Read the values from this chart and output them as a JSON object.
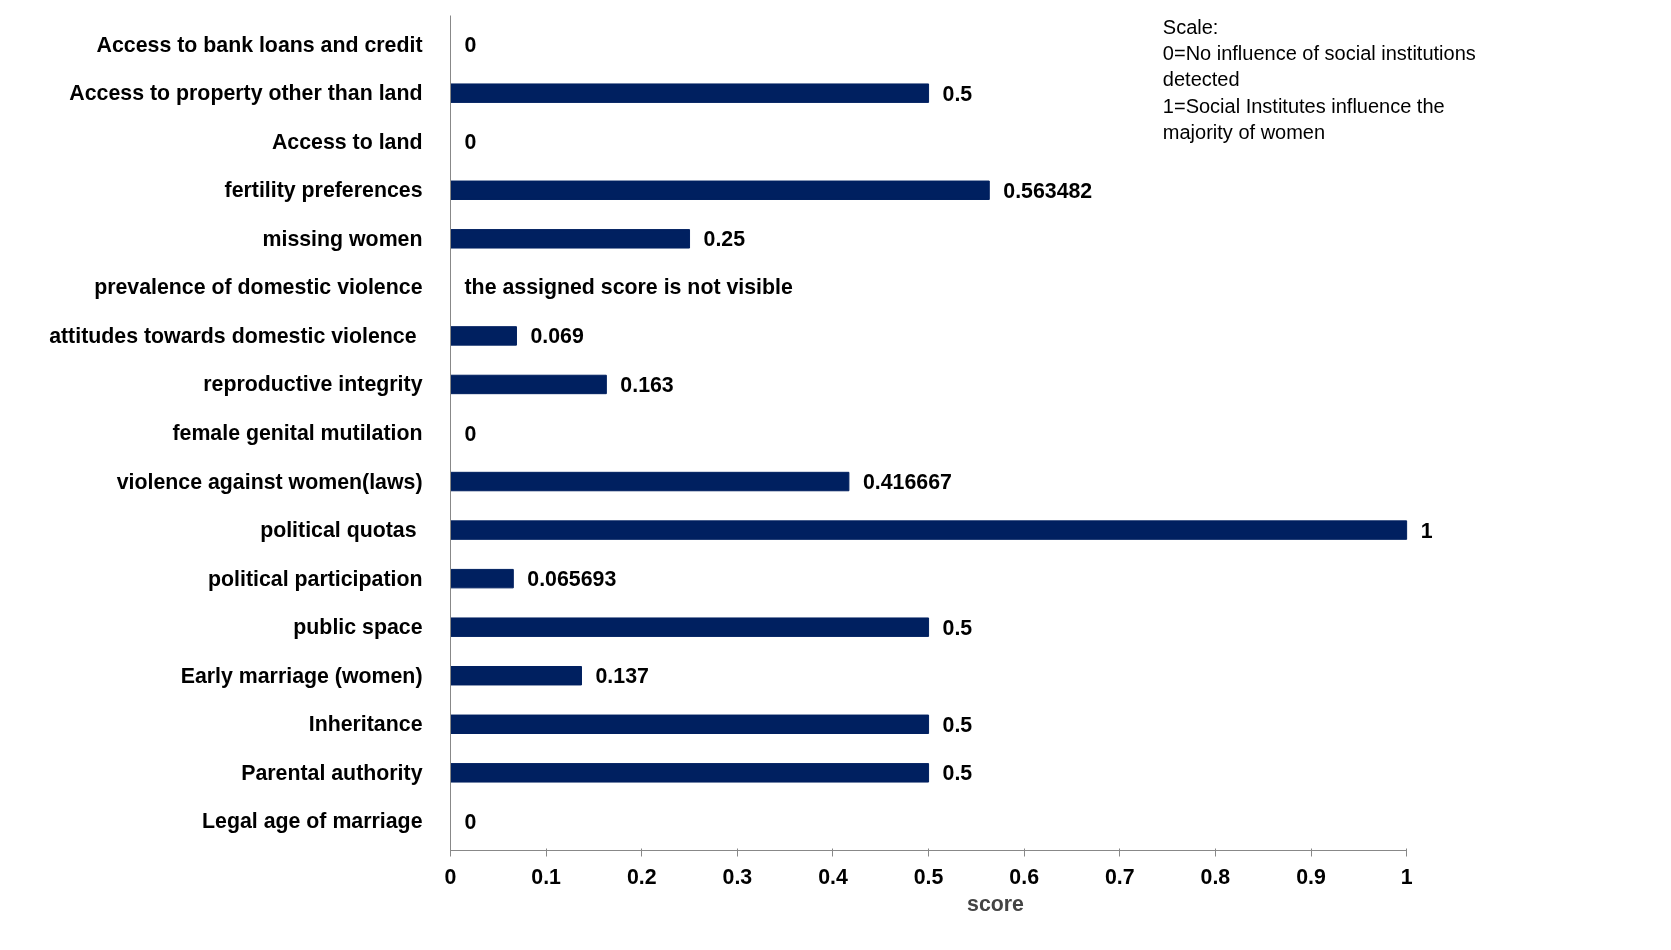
{
  "chart_data": {
    "type": "bar",
    "orientation": "horizontal",
    "xlabel": "score",
    "categories": [
      "Access to bank loans and credit",
      "Access to property other than land",
      "Access to land",
      "fertility preferences",
      "missing women",
      "prevalence of domestic violence",
      "attitudes towards  domestic violence",
      "reproductive integrity",
      "female genital mutilation",
      "violence against women(laws)",
      "political  quotas",
      "political participation",
      "public space",
      "Early marriage (women)",
      "Inheritance",
      "Parental authority",
      "Legal age of marriage"
    ],
    "values": [
      0,
      0.5,
      0,
      0.563482,
      0.25,
      null,
      0.069,
      0.163,
      0,
      0.416667,
      1,
      0.065693,
      0.5,
      0.137,
      0.5,
      0.5,
      0
    ],
    "value_labels": [
      "0",
      "0.5",
      "0",
      "0.563482",
      "0.25",
      "the assigned score is not visible",
      "0.069",
      "0.163",
      "0",
      "0.416667",
      "1",
      "0.065693",
      "0.5",
      "0.137",
      "0.5",
      "0.5",
      "0"
    ],
    "color": "#002060",
    "xlim": [
      0,
      1
    ],
    "xticks": [
      0,
      0.1,
      0.2,
      0.3,
      0.4,
      0.5,
      0.6,
      0.7,
      0.8,
      0.9,
      1
    ],
    "grid": false,
    "annotations": [
      "Scale:\n0=No influence of social institutions\n detected\n1=Social Institutes influence the\nmajority of women"
    ]
  }
}
